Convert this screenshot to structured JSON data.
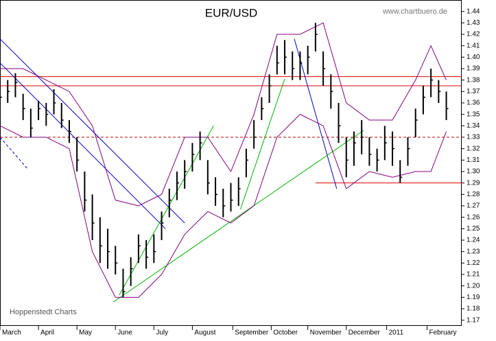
{
  "chart_data": {
    "type": "ohlc",
    "title": "EUR/USD",
    "source": "www.chartbuero.de",
    "credit": "Hoppenstedt Charts",
    "xlim": [
      0,
      240
    ],
    "ylim": [
      1.165,
      1.45
    ],
    "xticks": [
      {
        "value": 0,
        "label": "March"
      },
      {
        "value": 20,
        "label": "April"
      },
      {
        "value": 40,
        "label": "May"
      },
      {
        "value": 60,
        "label": "June"
      },
      {
        "value": 80,
        "label": "July"
      },
      {
        "value": 100,
        "label": "August"
      },
      {
        "value": 121,
        "label": "September"
      },
      {
        "value": 141,
        "label": "October"
      },
      {
        "value": 160,
        "label": "November"
      },
      {
        "value": 180,
        "label": "December"
      },
      {
        "value": 201,
        "label": "2011"
      },
      {
        "value": 222,
        "label": "February"
      }
    ],
    "yticks": [
      1.17,
      1.18,
      1.19,
      {
        "value": 1.2,
        "label": "1.20"
      },
      1.21,
      1.22,
      1.23,
      1.24,
      1.25,
      1.26,
      1.27,
      1.28,
      1.29,
      {
        "value": 1.3,
        "label": "1.30"
      },
      1.31,
      1.32,
      1.33,
      1.34,
      1.35,
      1.36,
      1.37,
      1.38,
      1.39,
      {
        "value": 1.4,
        "label": "1.40"
      },
      1.41,
      1.42,
      1.43,
      1.44
    ],
    "color": "#000000",
    "x": [
      0,
      4,
      8,
      12,
      16,
      20,
      24,
      28,
      32,
      36,
      40,
      44,
      48,
      52,
      56,
      60,
      64,
      68,
      72,
      76,
      80,
      84,
      88,
      92,
      96,
      100,
      104,
      108,
      112,
      116,
      120,
      124,
      128,
      132,
      136,
      140,
      144,
      148,
      152,
      156,
      160,
      164,
      168,
      172,
      176,
      180,
      184,
      188,
      192,
      196,
      200,
      204,
      208,
      212,
      216,
      220,
      224,
      228,
      232
    ],
    "close": [
      1.365,
      1.37,
      1.378,
      1.355,
      1.338,
      1.355,
      1.35,
      1.36,
      1.345,
      1.335,
      1.31,
      1.275,
      1.255,
      1.235,
      1.23,
      1.22,
      1.195,
      1.215,
      1.235,
      1.225,
      1.23,
      1.255,
      1.275,
      1.29,
      1.3,
      1.315,
      1.325,
      1.29,
      1.28,
      1.27,
      1.275,
      1.285,
      1.31,
      1.33,
      1.355,
      1.375,
      1.395,
      1.4,
      1.39,
      1.395,
      1.4,
      1.42,
      1.39,
      1.37,
      1.34,
      1.31,
      1.325,
      1.33,
      1.315,
      1.31,
      1.325,
      1.32,
      1.295,
      1.32,
      1.345,
      1.365,
      1.38,
      1.37,
      1.355
    ],
    "high": [
      1.375,
      1.38,
      1.386,
      1.368,
      1.355,
      1.362,
      1.36,
      1.372,
      1.36,
      1.345,
      1.33,
      1.3,
      1.28,
      1.26,
      1.25,
      1.235,
      1.215,
      1.225,
      1.245,
      1.24,
      1.245,
      1.265,
      1.285,
      1.3,
      1.31,
      1.325,
      1.335,
      1.31,
      1.295,
      1.285,
      1.29,
      1.295,
      1.32,
      1.345,
      1.365,
      1.385,
      1.41,
      1.415,
      1.405,
      1.405,
      1.41,
      1.43,
      1.405,
      1.385,
      1.36,
      1.33,
      1.335,
      1.345,
      1.33,
      1.32,
      1.34,
      1.335,
      1.31,
      1.33,
      1.355,
      1.375,
      1.39,
      1.38,
      1.37
    ],
    "low": [
      1.355,
      1.36,
      1.365,
      1.345,
      1.33,
      1.345,
      1.34,
      1.35,
      1.338,
      1.325,
      1.3,
      1.265,
      1.24,
      1.22,
      1.215,
      1.21,
      1.19,
      1.2,
      1.22,
      1.215,
      1.22,
      1.24,
      1.26,
      1.275,
      1.285,
      1.3,
      1.31,
      1.28,
      1.27,
      1.26,
      1.265,
      1.27,
      1.295,
      1.32,
      1.345,
      1.36,
      1.385,
      1.385,
      1.38,
      1.38,
      1.385,
      1.405,
      1.375,
      1.355,
      1.325,
      1.295,
      1.305,
      1.315,
      1.305,
      1.3,
      1.31,
      1.305,
      1.29,
      1.305,
      1.33,
      1.35,
      1.365,
      1.36,
      1.345
    ],
    "bands": {
      "color": "#800080",
      "x": [
        0,
        12,
        24,
        36,
        48,
        60,
        72,
        84,
        96,
        108,
        120,
        132,
        144,
        156,
        168,
        180,
        192,
        204,
        216,
        224,
        232
      ],
      "upper": [
        1.39,
        1.39,
        1.38,
        1.37,
        1.34,
        1.275,
        1.27,
        1.28,
        1.33,
        1.33,
        1.3,
        1.35,
        1.42,
        1.42,
        1.43,
        1.36,
        1.345,
        1.345,
        1.38,
        1.41,
        1.38
      ],
      "lower": [
        1.34,
        1.33,
        1.33,
        1.32,
        1.23,
        1.19,
        1.19,
        1.21,
        1.245,
        1.265,
        1.255,
        1.27,
        1.33,
        1.35,
        1.34,
        1.285,
        1.3,
        1.295,
        1.3,
        1.3,
        1.335
      ]
    },
    "levels": [
      {
        "value": 1.383,
        "color": "#e00000",
        "x": [
          0,
          240
        ],
        "dashed": false
      },
      {
        "value": 1.375,
        "color": "#e00000",
        "x": [
          0,
          240
        ],
        "dashed": false
      },
      {
        "value": 1.33,
        "color": "#c00000",
        "x": [
          0,
          240
        ],
        "dashed": true
      },
      {
        "value": 1.29,
        "color": "#e00000",
        "x": [
          164,
          240
        ],
        "dashed": false
      }
    ],
    "trendlines": [
      {
        "color": "#0000c0",
        "dashed": false,
        "x": [
          0,
          96
        ],
        "y": [
          1.416,
          1.255
        ]
      },
      {
        "color": "#0000c0",
        "dashed": false,
        "x": [
          0,
          86
        ],
        "y": [
          1.395,
          1.25
        ]
      },
      {
        "color": "#0000c0",
        "dashed": true,
        "x": [
          0,
          14
        ],
        "y": [
          1.33,
          1.303
        ]
      },
      {
        "color": "#0000c0",
        "dashed": false,
        "x": [
          153,
          175
        ],
        "y": [
          1.416,
          1.285
        ]
      },
      {
        "color": "#00b000",
        "dashed": false,
        "x": [
          59,
          189
        ],
        "y": [
          1.186,
          1.336
        ]
      },
      {
        "color": "#00b000",
        "dashed": false,
        "x": [
          62,
          111
        ],
        "y": [
          1.192,
          1.34
        ]
      },
      {
        "color": "#00b000",
        "dashed": false,
        "x": [
          125,
          148
        ],
        "y": [
          1.267,
          1.381
        ]
      }
    ]
  }
}
